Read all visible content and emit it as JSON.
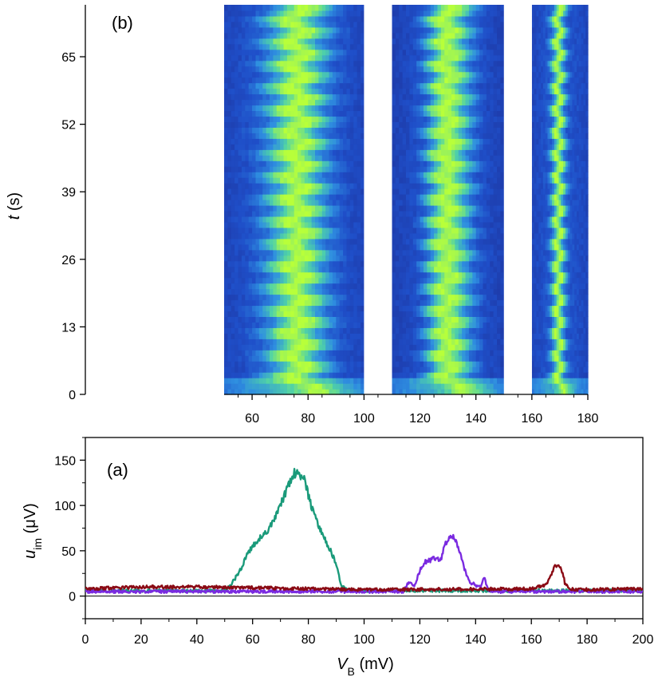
{
  "chart_data": [
    {
      "type": "heatmap",
      "panel_label": "(b)",
      "ylabel_var": "t",
      "ylabel_unit": " (s)",
      "yticks": [
        "0",
        "13",
        "26",
        "39",
        "52",
        "65"
      ],
      "ytick_values": [
        0,
        13,
        26,
        39,
        52,
        65
      ],
      "ylim": [
        0,
        75
      ],
      "xticks": [
        "60",
        "80",
        "100",
        "120",
        "140",
        "160",
        "180"
      ],
      "xtick_values": [
        60,
        80,
        100,
        120,
        140,
        160,
        180
      ],
      "xlim": [
        50,
        180
      ],
      "bands": [
        {
          "name": "band-1",
          "x_range": [
            50,
            100
          ],
          "center": 76,
          "width": 7,
          "wobble_amplitude": 3.5,
          "period_s": 4.3
        },
        {
          "name": "band-2",
          "x_range": [
            110,
            150
          ],
          "center": 131,
          "width": 5,
          "wobble_amplitude": 2.5,
          "period_s": 4.3
        },
        {
          "name": "band-3",
          "x_range": [
            160,
            180
          ],
          "center": 169.5,
          "width": 1.6,
          "wobble_amplitude": 1.2,
          "period_s": 4.3
        }
      ],
      "gaps": [
        [
          100,
          110
        ],
        [
          150,
          160
        ]
      ],
      "colormap": [
        "#1d2a8f",
        "#1f4fc9",
        "#2f8fe0",
        "#4fd1a8",
        "#b8ff3a"
      ]
    },
    {
      "type": "line",
      "panel_label": "(a)",
      "xlabel_var": "V",
      "xlabel_sub": "B",
      "xlabel_unit": " (mV)",
      "ylabel_var": "u",
      "ylabel_sub": "im",
      "ylabel_unit": " (μV)",
      "xlim": [
        0,
        200
      ],
      "ylim": [
        -25,
        175
      ],
      "xticks": [
        "0",
        "20",
        "40",
        "60",
        "80",
        "100",
        "120",
        "140",
        "160",
        "180",
        "200"
      ],
      "xtick_values": [
        0,
        20,
        40,
        60,
        80,
        100,
        120,
        140,
        160,
        180,
        200
      ],
      "yticks": [
        "0",
        "50",
        "100",
        "150"
      ],
      "ytick_values": [
        0,
        50,
        100,
        150
      ],
      "series": [
        {
          "name": "green",
          "color": "#1a9a7a",
          "x": [
            0,
            50,
            52,
            55,
            58,
            60,
            62,
            65,
            68,
            70,
            72,
            74,
            75,
            76,
            77,
            78,
            79,
            80,
            82,
            84,
            86,
            88,
            90,
            92,
            95,
            100,
            200
          ],
          "y": [
            6,
            6,
            12,
            25,
            45,
            55,
            62,
            70,
            85,
            100,
            115,
            128,
            135,
            138,
            132,
            135,
            125,
            110,
            90,
            75,
            62,
            50,
            35,
            10,
            6,
            6,
            6
          ]
        },
        {
          "name": "purple",
          "color": "#7a2ae0",
          "x": [
            0,
            114,
            116,
            118,
            120,
            122,
            124,
            126,
            127,
            128,
            129,
            130,
            131,
            132,
            133,
            134,
            135,
            136,
            137,
            138,
            140,
            142,
            143,
            145,
            200
          ],
          "y": [
            5,
            5,
            15,
            10,
            28,
            38,
            40,
            42,
            38,
            44,
            58,
            62,
            68,
            66,
            60,
            52,
            40,
            30,
            20,
            15,
            12,
            10,
            20,
            5,
            5
          ]
        },
        {
          "name": "darkred",
          "color": "#8a0a14",
          "x": [
            0,
            20,
            44,
            100,
            160,
            165,
            167,
            168,
            169,
            170,
            171,
            172,
            174,
            176,
            200
          ],
          "y": [
            8,
            10,
            10,
            7,
            8,
            12,
            22,
            30,
            34,
            33,
            28,
            15,
            8,
            7,
            8
          ]
        }
      ]
    }
  ]
}
